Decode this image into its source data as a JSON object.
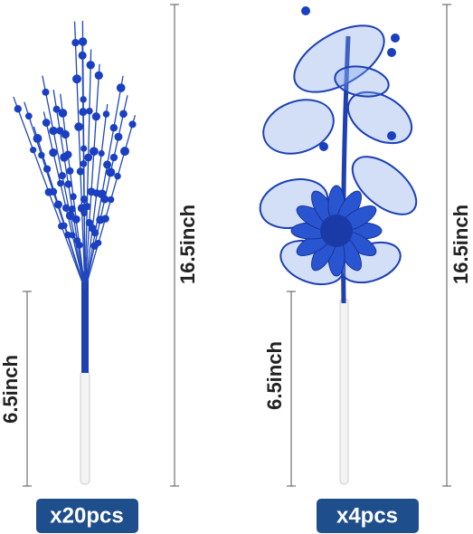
{
  "items": [
    {
      "total_length": "16.5inch",
      "stem_length": "6.5inch",
      "quantity": "x20pcs"
    },
    {
      "total_length": "16.5inch",
      "stem_length": "6.5inch",
      "quantity": "x4pcs"
    }
  ]
}
